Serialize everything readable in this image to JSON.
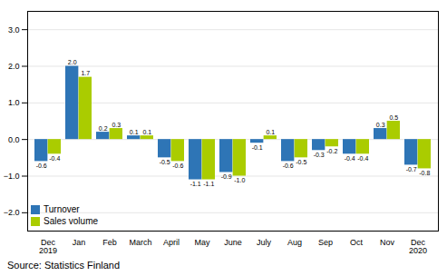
{
  "chart_data": {
    "type": "bar",
    "categories": [
      "Dec\n2019",
      "Jan",
      "Feb",
      "March",
      "April",
      "May",
      "June",
      "July",
      "Aug",
      "Sep",
      "Oct",
      "Nov",
      "Dec\n2020"
    ],
    "series": [
      {
        "name": "Turnover",
        "color": "#2E75B6",
        "values": [
          -0.6,
          2.0,
          0.2,
          0.1,
          -0.5,
          -1.1,
          -0.9,
          -0.1,
          -0.6,
          -0.3,
          -0.4,
          0.3,
          -0.7
        ],
        "value_labels": [
          "-0.6",
          "2.0",
          "0.2",
          "0.1",
          "-0.5",
          "-1.1",
          "-0.9",
          "-0.1",
          "-0.6",
          "-0.3",
          "-0.4",
          "0.3",
          "-0.7"
        ]
      },
      {
        "name": "Sales volume",
        "color": "#AACC00",
        "values": [
          -0.4,
          1.7,
          0.3,
          0.1,
          -0.6,
          -1.1,
          -1.0,
          0.1,
          -0.5,
          -0.2,
          -0.4,
          0.5,
          -0.8
        ],
        "value_labels": [
          "-0.4",
          "1.7",
          "0.3",
          "0.1",
          "-0.6",
          "-1.1",
          "-1.0",
          "0.1",
          "-0.5",
          "-0.2",
          "-0.4",
          "0.5",
          "-0.8"
        ]
      }
    ],
    "ylim": [
      -2.5,
      3.5
    ],
    "yticks": [
      -2,
      -1,
      0,
      1,
      2,
      3
    ],
    "grid": true,
    "legend": "lower left",
    "data_labels": true,
    "caption": "Source: Statistics Finland"
  }
}
